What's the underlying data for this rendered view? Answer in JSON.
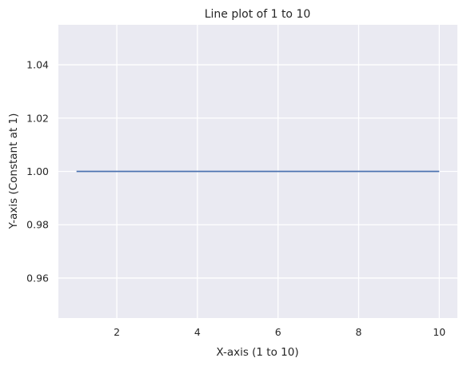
{
  "chart_data": {
    "type": "line",
    "title": "Line plot of 1 to 10",
    "xlabel": "X-axis (1 to 10)",
    "ylabel": "Y-axis (Constant at 1)",
    "xlim": [
      0.55,
      10.45
    ],
    "ylim": [
      0.945,
      1.055
    ],
    "xticks": [
      2,
      4,
      6,
      8,
      10
    ],
    "yticks": [
      0.96,
      0.98,
      1.0,
      1.02,
      1.04
    ],
    "ytick_labels": [
      "0.96",
      "0.98",
      "1.00",
      "1.02",
      "1.04"
    ],
    "grid": true,
    "background_color": "#eaeaf2",
    "grid_color": "#ffffff",
    "series": [
      {
        "color": "#4c72b0",
        "x": [
          1,
          2,
          3,
          4,
          5,
          6,
          7,
          8,
          9,
          10
        ],
        "y": [
          1,
          1,
          1,
          1,
          1,
          1,
          1,
          1,
          1,
          1
        ]
      }
    ]
  }
}
